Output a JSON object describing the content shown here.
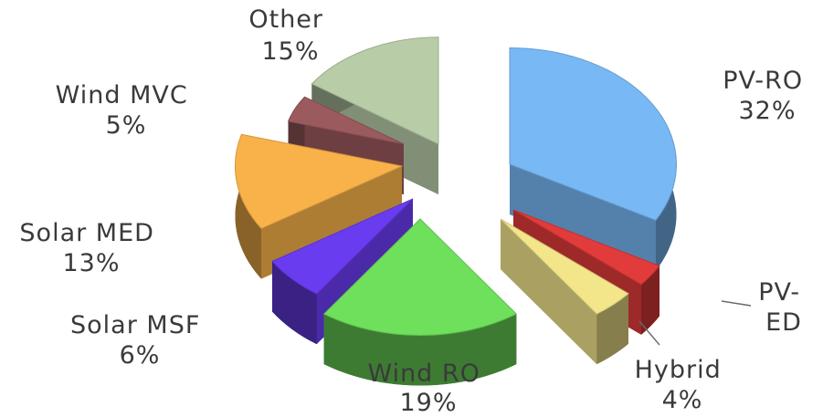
{
  "chart_data": {
    "type": "pie",
    "style": "exploded-3d",
    "title": "",
    "slices": [
      {
        "key": "pvro",
        "name": "PV-RO",
        "pct_label": "32%",
        "value": 32,
        "color": "#78b8f4"
      },
      {
        "key": "pved",
        "name": "PV-ED",
        "pct_label": "",
        "value": 3,
        "color": "#e23b3b"
      },
      {
        "key": "hybrid",
        "name": "Hybrid",
        "pct_label": "4%",
        "value": 4,
        "color": "#f3e58a"
      },
      {
        "key": "windro",
        "name": "Wind RO",
        "pct_label": "19%",
        "value": 19,
        "color": "#6ee05c"
      },
      {
        "key": "solarmsf",
        "name": "Solar MSF",
        "pct_label": "6%",
        "value": 6,
        "color": "#6a3cf0"
      },
      {
        "key": "solarmed",
        "name": "Solar MED",
        "pct_label": "13%",
        "value": 13,
        "color": "#f9b24a"
      },
      {
        "key": "windmvc",
        "name": "Wind MVC",
        "pct_label": "5%",
        "value": 5,
        "color": "#9b5a5e"
      },
      {
        "key": "other",
        "name": "Other",
        "pct_label": "15%",
        "value": 15,
        "color": "#b8cca8"
      }
    ],
    "label_lines": {
      "pvro": [
        "PV-RO",
        "32%"
      ],
      "pved": [
        "PV-",
        "ED"
      ],
      "hybrid": [
        "Hybrid",
        "4%"
      ],
      "windro": [
        "Wind RO",
        "19%"
      ],
      "solarmsf": [
        "Solar MSF",
        "6%"
      ],
      "solarmed": [
        "Solar MED",
        "13%"
      ],
      "windmvc": [
        "Wind MVC",
        "5%"
      ],
      "other": [
        "Other",
        "15%"
      ]
    }
  }
}
